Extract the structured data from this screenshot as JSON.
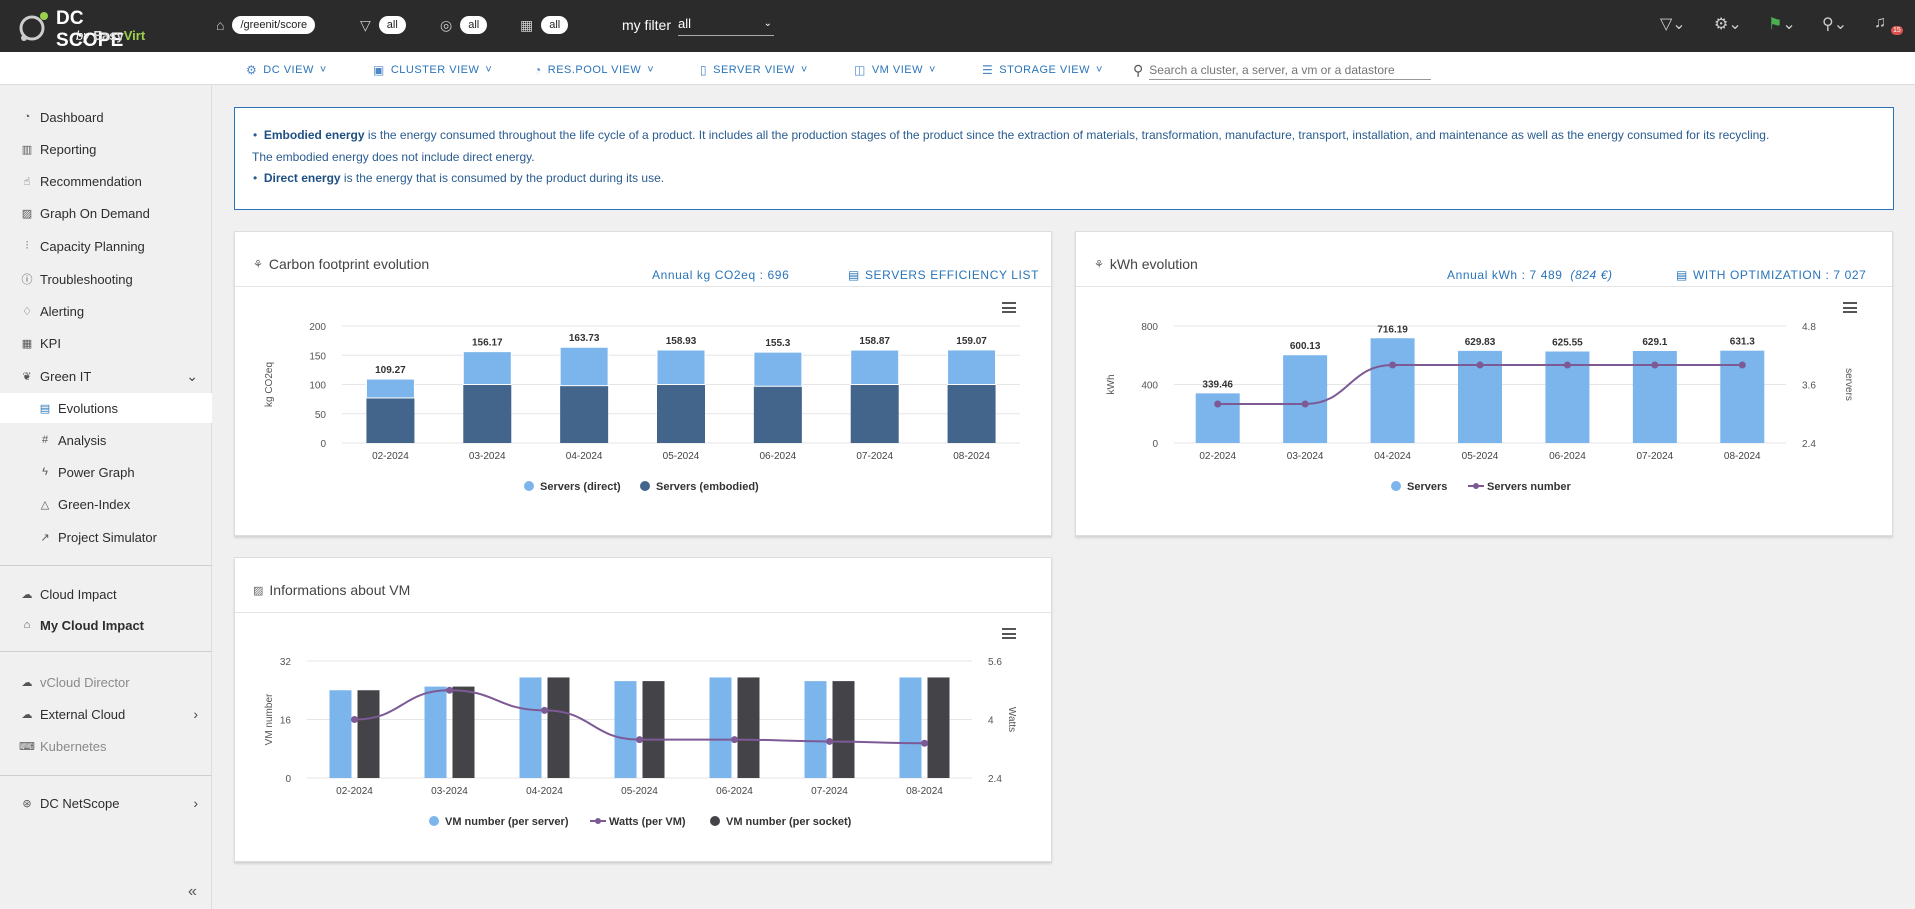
{
  "app": {
    "name_line1": "DC SCOPE",
    "name_by": "by",
    "name_easy": "Easy",
    "name_virt": "Virt"
  },
  "topbar": {
    "path": "/greenit/score",
    "filter_all": "all",
    "target_all": "all",
    "calendar_all": "all",
    "my_filter_label": "my filter",
    "my_filter_value": "all",
    "notification_count": "15"
  },
  "nav": [
    {
      "label": "DC VIEW"
    },
    {
      "label": "CLUSTER VIEW"
    },
    {
      "label": "RES.POOL VIEW"
    },
    {
      "label": "SERVER VIEW"
    },
    {
      "label": "VM VIEW"
    },
    {
      "label": "STORAGE VIEW"
    }
  ],
  "search": {
    "placeholder": "Search a cluster, a server, a vm or a datastore"
  },
  "sidebar": {
    "items": [
      {
        "label": "Dashboard"
      },
      {
        "label": "Reporting"
      },
      {
        "label": "Recommendation"
      },
      {
        "label": "Graph On Demand"
      },
      {
        "label": "Capacity Planning"
      },
      {
        "label": "Troubleshooting"
      },
      {
        "label": "Alerting"
      },
      {
        "label": "KPI"
      },
      {
        "label": "Green IT"
      },
      {
        "label": "Evolutions"
      },
      {
        "label": "Analysis"
      },
      {
        "label": "Power Graph"
      },
      {
        "label": "Green-Index"
      },
      {
        "label": "Project Simulator"
      },
      {
        "label": "Cloud Impact"
      },
      {
        "label": "My Cloud Impact"
      },
      {
        "label": "vCloud Director"
      },
      {
        "label": "External Cloud"
      },
      {
        "label": "Kubernetes"
      },
      {
        "label": "DC NetScope"
      }
    ]
  },
  "info": {
    "term1": "Embodied energy",
    "def1": " is the energy consumed throughout the life cycle of a product. It includes all the production stages of the product since the extraction of materials, transformation, manufacture, transport, installation, and maintenance as well as the energy consumed for its recycling.",
    "def1_cont": "The embodied energy does not include direct energy.",
    "term2": "Direct energy",
    "def2": " is the energy that is consumed by the product during its use."
  },
  "carbon": {
    "title": "Carbon footprint evolution",
    "annual": "Annual kg CO2eq : 696",
    "action": "SERVERS EFFICIENCY LIST"
  },
  "kwh": {
    "title": "kWh evolution",
    "annual": "Annual kWh : 7 489",
    "annual_cost": "(824 €)",
    "action": "WITH OPTIMIZATION : 7 027"
  },
  "vm": {
    "title": "Informations about VM"
  },
  "colors": {
    "light_blue": "#7cb5ec",
    "dark_blue": "#434348",
    "steel": "#43658b",
    "purple": "#7d5a95",
    "accent": "#2a74b9"
  },
  "chart_data": [
    {
      "type": "bar",
      "stacked": true,
      "categories": [
        "02-2024",
        "03-2024",
        "04-2024",
        "05-2024",
        "06-2024",
        "07-2024",
        "08-2024"
      ],
      "series": [
        {
          "name": "Servers (direct)",
          "values": [
            32.3,
            56.2,
            65.7,
            59.0,
            58.3,
            58.9,
            59.1
          ]
        },
        {
          "name": "Servers (embodied)",
          "values": [
            77,
            100,
            98,
            100,
            97,
            100,
            100
          ]
        }
      ],
      "totals": [
        109.27,
        156.17,
        163.73,
        158.93,
        155.3,
        158.87,
        159.07
      ],
      "ylabel": "kg CO2eq",
      "yticks": [
        0,
        50,
        100,
        150,
        200
      ],
      "ylim": [
        0,
        200
      ],
      "legend": "bottom"
    },
    {
      "type": "bar",
      "categories": [
        "02-2024",
        "03-2024",
        "04-2024",
        "05-2024",
        "06-2024",
        "07-2024",
        "08-2024"
      ],
      "series": [
        {
          "name": "Servers",
          "values": [
            339.46,
            600.13,
            716.19,
            629.83,
            625.55,
            629.1,
            631.3
          ]
        },
        {
          "name": "Servers number",
          "type": "line",
          "axis": "right",
          "values": [
            3.2,
            3.2,
            4.0,
            4.0,
            4.0,
            4.0,
            4.0
          ]
        }
      ],
      "ylabel": "kWh",
      "yticks": [
        0,
        400,
        800
      ],
      "ylim": [
        0,
        800
      ],
      "y2label": "servers",
      "y2ticks": [
        2.4,
        3.6,
        4.8
      ],
      "y2lim": [
        2.4,
        4.8
      ],
      "legend": "bottom"
    },
    {
      "type": "bar",
      "categories": [
        "02-2024",
        "03-2024",
        "04-2024",
        "05-2024",
        "06-2024",
        "07-2024",
        "08-2024"
      ],
      "series": [
        {
          "name": "VM number (per server)",
          "values": [
            24,
            25,
            27.5,
            26.5,
            27.5,
            26.5,
            27.5
          ]
        },
        {
          "name": "Watts (per VM)",
          "type": "line",
          "axis": "right",
          "values": [
            4.0,
            4.8,
            4.25,
            3.45,
            3.45,
            3.4,
            3.35
          ]
        },
        {
          "name": "VM number (per socket)",
          "values": [
            24,
            25,
            27.5,
            26.5,
            27.5,
            26.5,
            27.5
          ]
        }
      ],
      "ylabel": "VM number",
      "yticks": [
        0,
        16,
        32
      ],
      "ylim": [
        0,
        32
      ],
      "y2label": "Watts",
      "y2ticks": [
        2.4,
        4,
        5.6
      ],
      "y2lim": [
        2.4,
        5.6
      ],
      "legend": "bottom"
    }
  ]
}
